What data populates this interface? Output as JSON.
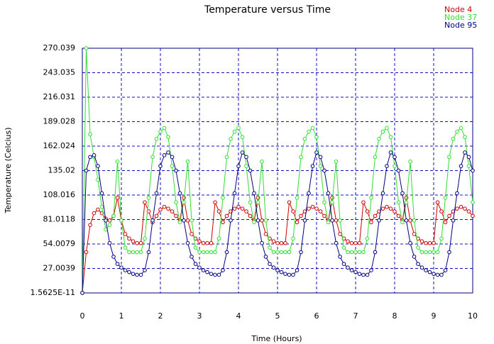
{
  "chart_data": {
    "type": "line",
    "title": "Temperature versus Time",
    "xlabel": "Time (Hours)",
    "ylabel": "Temperature (Celcius)",
    "x": [
      0,
      0.1,
      0.2,
      0.3,
      0.4,
      0.5,
      0.6,
      0.7,
      0.8,
      0.9,
      1,
      1.1,
      1.2,
      1.3,
      1.4,
      1.5,
      1.6,
      1.7,
      1.8,
      1.9,
      2,
      2.1,
      2.2,
      2.3,
      2.4,
      2.5,
      2.6,
      2.7,
      2.8,
      2.9,
      3,
      3.1,
      3.2,
      3.3,
      3.4,
      3.5,
      3.6,
      3.7,
      3.8,
      3.9,
      4,
      4.1,
      4.2,
      4.3,
      4.4,
      4.5,
      4.6,
      4.7,
      4.8,
      4.9,
      5,
      5.1,
      5.2,
      5.3,
      5.4,
      5.5,
      5.6,
      5.7,
      5.8,
      5.9,
      6,
      6.1,
      6.2,
      6.3,
      6.4,
      6.5,
      6.6,
      6.7,
      6.8,
      6.9,
      7,
      7.1,
      7.2,
      7.3,
      7.4,
      7.5,
      7.6,
      7.7,
      7.8,
      7.9,
      8,
      8.1,
      8.2,
      8.3,
      8.4,
      8.5,
      8.6,
      8.7,
      8.8,
      8.9,
      9,
      9.1,
      9.2,
      9.3,
      9.4,
      9.5,
      9.6,
      9.7,
      9.8,
      9.9,
      10
    ],
    "series": [
      {
        "name": "Node 4",
        "color": "#cc0000",
        "values": [
          0,
          45,
          75,
          88,
          92,
          88,
          82,
          80,
          85,
          105,
          80,
          65,
          60,
          57,
          55,
          55,
          100,
          90,
          78,
          85,
          92,
          95,
          93,
          90,
          85,
          80,
          105,
          80,
          65,
          60,
          57,
          55,
          55,
          55,
          100,
          90,
          78,
          85,
          90,
          93,
          95,
          93,
          90,
          85,
          80,
          105,
          80,
          65,
          60,
          57,
          55,
          55,
          55,
          100,
          90,
          78,
          85,
          90,
          93,
          95,
          93,
          90,
          85,
          80,
          105,
          80,
          65,
          60,
          57,
          55,
          55,
          55,
          100,
          90,
          78,
          85,
          90,
          93,
          95,
          93,
          90,
          85,
          80,
          105,
          80,
          65,
          60,
          57,
          55,
          55,
          55,
          100,
          90,
          78,
          85,
          90,
          93,
          95,
          93,
          90,
          85
        ]
      },
      {
        "name": "Node 37",
        "color": "#33dd33",
        "values": [
          0,
          270,
          175,
          150,
          125,
          95,
          70,
          75,
          85,
          145,
          80,
          50,
          45,
          45,
          45,
          45,
          60,
          105,
          150,
          170,
          178,
          182,
          172,
          140,
          100,
          78,
          100,
          145,
          80,
          50,
          45,
          45,
          45,
          45,
          45,
          60,
          105,
          150,
          170,
          178,
          182,
          172,
          140,
          100,
          78,
          100,
          145,
          80,
          50,
          45,
          45,
          45,
          45,
          45,
          60,
          105,
          150,
          170,
          178,
          182,
          172,
          140,
          100,
          78,
          100,
          145,
          80,
          50,
          45,
          45,
          45,
          45,
          45,
          60,
          105,
          150,
          170,
          178,
          182,
          172,
          140,
          100,
          78,
          100,
          145,
          80,
          50,
          45,
          45,
          45,
          45,
          45,
          60,
          105,
          150,
          170,
          178,
          182,
          172,
          140,
          100
        ]
      },
      {
        "name": "Node 95",
        "color": "#000080",
        "values": [
          0,
          135,
          150,
          152,
          140,
          110,
          80,
          55,
          40,
          32,
          28,
          25,
          23,
          21,
          20,
          20,
          25,
          45,
          80,
          110,
          140,
          152,
          155,
          150,
          135,
          110,
          80,
          55,
          40,
          32,
          28,
          25,
          23,
          21,
          20,
          20,
          25,
          45,
          80,
          110,
          140,
          155,
          150,
          135,
          110,
          80,
          55,
          40,
          32,
          28,
          25,
          23,
          21,
          20,
          20,
          25,
          45,
          80,
          110,
          140,
          155,
          150,
          135,
          110,
          80,
          55,
          40,
          32,
          28,
          25,
          23,
          21,
          20,
          20,
          25,
          45,
          80,
          110,
          140,
          155,
          150,
          135,
          110,
          80,
          55,
          40,
          32,
          28,
          25,
          23,
          21,
          20,
          20,
          25,
          45,
          80,
          110,
          140,
          155,
          150,
          135
        ]
      }
    ],
    "xlim": [
      0,
      10
    ],
    "xticks": [
      0,
      1,
      2,
      3,
      4,
      5,
      6,
      7,
      8,
      9,
      10
    ],
    "ylim": [
      1.5625e-11,
      270.039
    ],
    "yticks": [
      {
        "value": 1.5625e-11,
        "label": "1.5625E-11"
      },
      27.0039,
      54.0079,
      81.0118,
      108.016,
      135.02,
      162.024,
      189.028,
      216.031,
      243.035,
      270.039
    ],
    "grid": true
  }
}
